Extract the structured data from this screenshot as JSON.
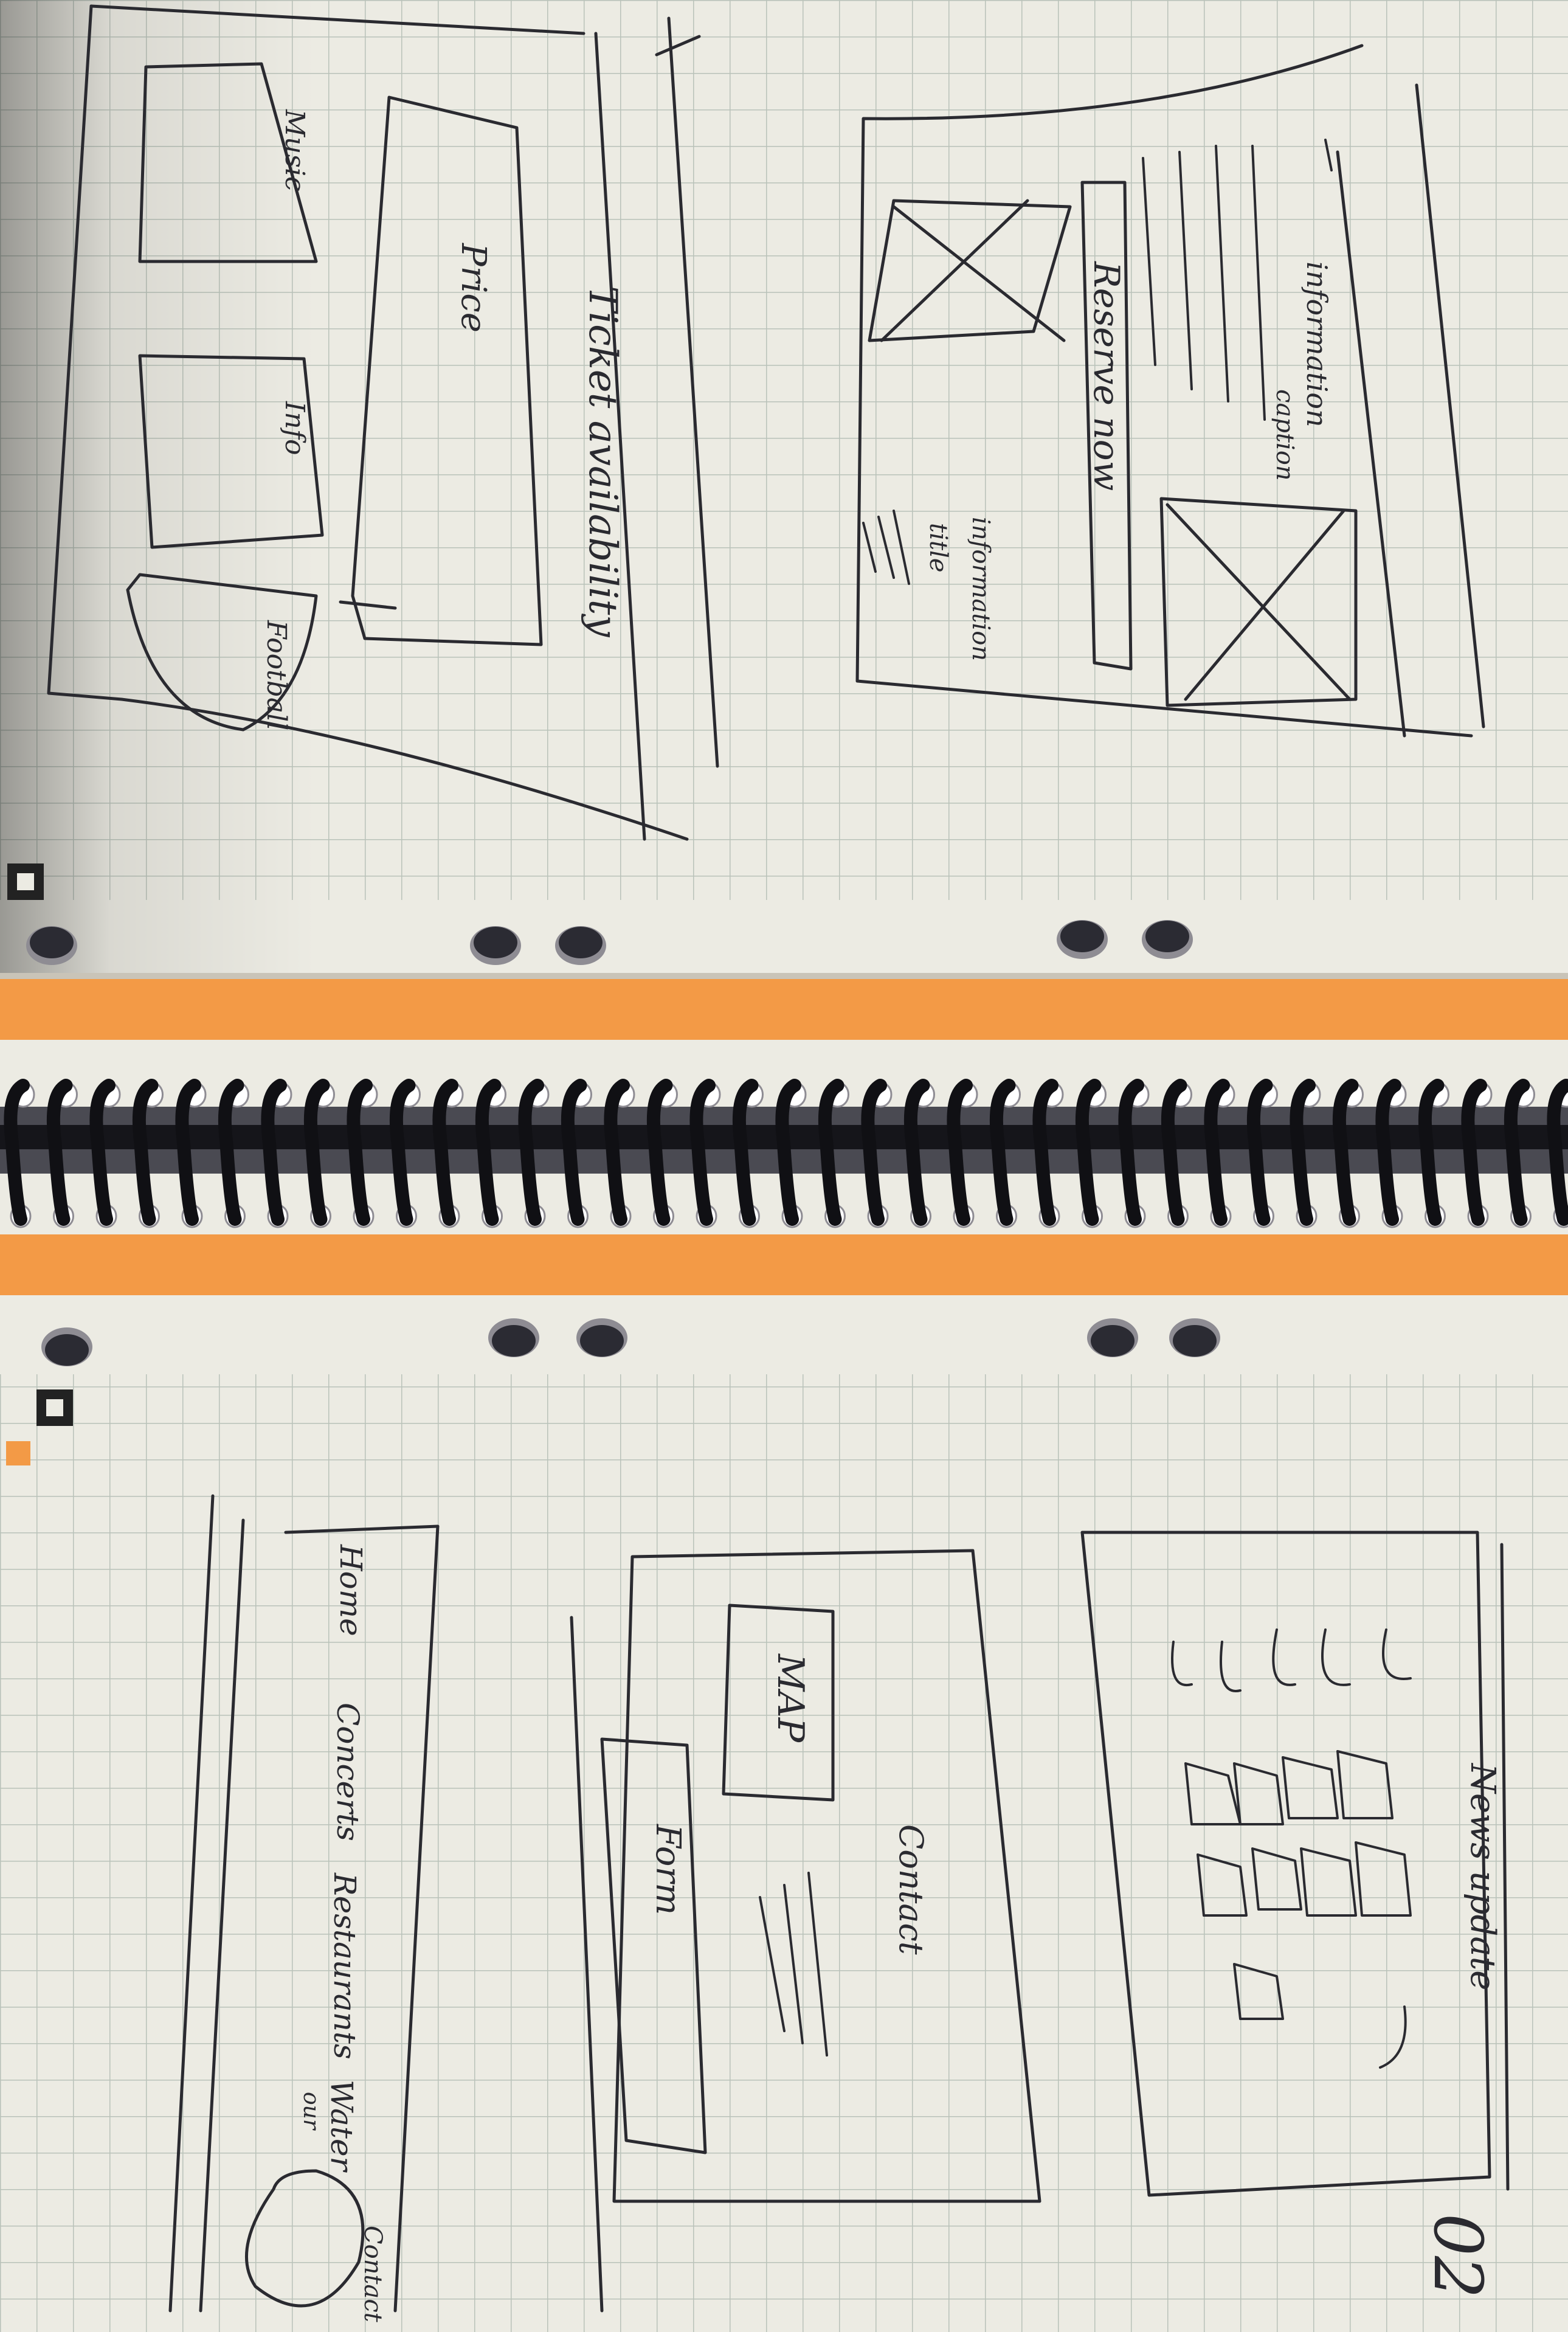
{
  "notebook": {
    "colors": {
      "paper": "#ecebe3",
      "grid": "#b9c2b9",
      "ink": "#2a2a30",
      "orange": "#f39a46",
      "spiral": "#101014"
    },
    "top_page": {
      "header_left": {
        "label_1": "information",
        "label_2": "caption"
      },
      "reserve_button": "Reserve now",
      "text_right": {
        "line_1": "information",
        "line_2": "title"
      },
      "ticket_title": "Ticket availability",
      "price_label": "Price",
      "icon_labels": [
        "Music",
        "Info",
        "Football"
      ]
    },
    "bottom_page": {
      "nav_items": [
        "Home",
        "Concerts",
        "Restaurants",
        "Water",
        "Contact"
      ],
      "account_label": "our",
      "contact_section_title": "Contact",
      "map_label": "MAP",
      "form_label": "Form",
      "news_title": "News update",
      "page_number": "02"
    }
  }
}
